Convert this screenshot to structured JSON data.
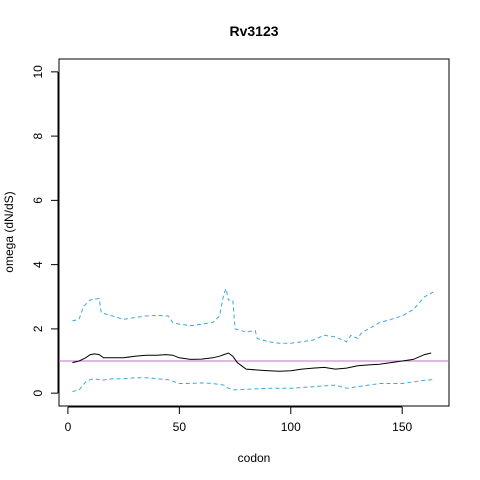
{
  "chart_data": {
    "type": "line",
    "title": "Rv3123",
    "xlabel": "codon",
    "ylabel": "omega (dN/dS)",
    "xlim": [
      -4,
      171
    ],
    "ylim": [
      -0.4,
      10.4
    ],
    "x_ticks": [
      0,
      50,
      100,
      150
    ],
    "y_ticks": [
      0,
      2,
      4,
      6,
      8,
      10
    ],
    "grid": false,
    "reference_line": {
      "y": 1,
      "color": "#c070c0"
    },
    "series": [
      {
        "role": "estimate",
        "color": "#000000",
        "dash": "solid",
        "x": [
          2,
          5,
          8,
          10,
          12,
          14,
          16,
          20,
          25,
          30,
          35,
          40,
          44,
          47,
          50,
          55,
          60,
          65,
          68,
          70,
          72,
          74,
          76,
          78,
          80,
          85,
          90,
          95,
          100,
          105,
          110,
          115,
          120,
          125,
          130,
          135,
          140,
          145,
          150,
          155,
          160,
          163
        ],
        "y": [
          0.95,
          1.0,
          1.1,
          1.2,
          1.22,
          1.2,
          1.1,
          1.1,
          1.1,
          1.15,
          1.18,
          1.18,
          1.2,
          1.18,
          1.1,
          1.05,
          1.06,
          1.1,
          1.15,
          1.2,
          1.25,
          1.15,
          0.95,
          0.85,
          0.75,
          0.72,
          0.7,
          0.68,
          0.7,
          0.75,
          0.78,
          0.8,
          0.75,
          0.78,
          0.85,
          0.88,
          0.9,
          0.95,
          1.0,
          1.05,
          1.2,
          1.25
        ]
      },
      {
        "role": "upper bound",
        "color": "#3aa8e0",
        "dash": "dashed",
        "x": [
          2,
          5,
          7,
          10,
          14,
          15,
          20,
          25,
          30,
          35,
          40,
          45,
          47,
          50,
          55,
          60,
          65,
          68,
          70,
          71,
          72,
          74,
          75,
          80,
          84,
          85,
          90,
          95,
          100,
          105,
          110,
          115,
          120,
          125,
          127,
          130,
          132,
          135,
          140,
          145,
          150,
          155,
          160,
          164
        ],
        "y": [
          2.25,
          2.3,
          2.7,
          2.9,
          2.95,
          2.5,
          2.4,
          2.3,
          2.35,
          2.4,
          2.42,
          2.4,
          2.2,
          2.15,
          2.1,
          2.15,
          2.2,
          2.4,
          3.1,
          3.25,
          2.9,
          2.9,
          2.0,
          1.9,
          1.95,
          1.7,
          1.6,
          1.55,
          1.55,
          1.6,
          1.65,
          1.8,
          1.75,
          1.6,
          1.8,
          1.7,
          1.9,
          2.0,
          2.2,
          2.3,
          2.4,
          2.6,
          3.0,
          3.15
        ]
      },
      {
        "role": "lower bound",
        "color": "#3aa8e0",
        "dash": "dashed",
        "x": [
          2,
          5,
          8,
          10,
          12,
          15,
          20,
          25,
          30,
          35,
          40,
          45,
          50,
          55,
          60,
          65,
          70,
          72,
          75,
          80,
          90,
          100,
          110,
          120,
          125,
          130,
          140,
          150,
          160,
          164
        ],
        "y": [
          0.05,
          0.1,
          0.35,
          0.42,
          0.45,
          0.4,
          0.45,
          0.45,
          0.48,
          0.48,
          0.45,
          0.42,
          0.3,
          0.3,
          0.32,
          0.3,
          0.25,
          0.15,
          0.1,
          0.12,
          0.15,
          0.15,
          0.2,
          0.25,
          0.15,
          0.2,
          0.3,
          0.3,
          0.4,
          0.42
        ]
      }
    ]
  }
}
